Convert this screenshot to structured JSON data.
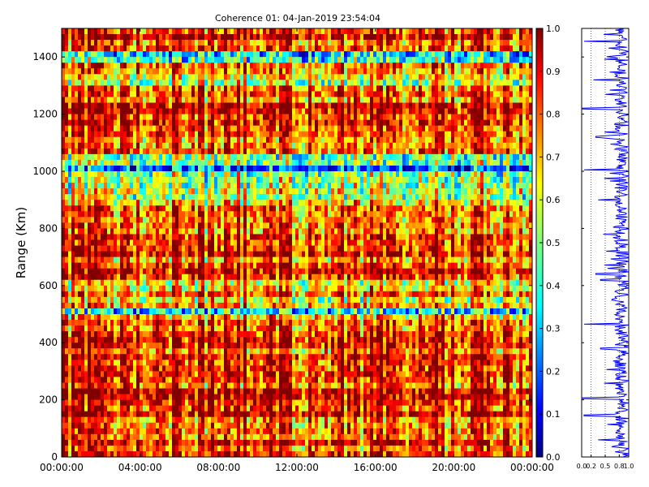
{
  "chart_data": [
    {
      "type": "heatmap",
      "title": "Coherence 01: 04-Jan-2019 23:54:04",
      "xlabel": "",
      "ylabel": "Range (Km)",
      "x_ticks": [
        "00:00:00",
        "04:00:00",
        "08:00:00",
        "12:00:00",
        "16:00:00",
        "20:00:00",
        "00:00:00"
      ],
      "x_range_hours": [
        0,
        24
      ],
      "y_ticks": [
        0,
        200,
        400,
        600,
        800,
        1000,
        1200,
        1400
      ],
      "ylim": [
        0,
        1500
      ],
      "colormap": "jet",
      "color_range": [
        0.0,
        1.0
      ],
      "colorbar_ticks": [
        "0.0",
        "0.1",
        "0.2",
        "0.3",
        "0.4",
        "0.5",
        "0.6",
        "0.7",
        "0.8",
        "0.9",
        "1.0"
      ],
      "grid": false,
      "bands": [
        {
          "range_km": [
            0,
            1500
          ],
          "coherence": 0.85
        },
        {
          "range_km": [
            440,
            620
          ],
          "coherence": 0.72
        },
        {
          "range_km": [
            880,
            1060
          ],
          "coherence": 0.6
        },
        {
          "range_km": [
            1300,
            1345
          ],
          "coherence": 0.55
        },
        {
          "range_km": [
            1390,
            1410
          ],
          "coherence": 0.45
        },
        {
          "range_km": [
            500,
            510
          ],
          "coherence": 0.4
        },
        {
          "range_km": [
            1000,
            1020
          ],
          "coherence": 0.35
        }
      ]
    },
    {
      "type": "line",
      "title": "",
      "xlabel": "",
      "ylabel": "",
      "x_ticks": [
        "0.0",
        "0.2",
        "0.5",
        "0.8",
        "1.0"
      ],
      "xlim": [
        0,
        1
      ],
      "ylim": [
        0,
        1500
      ],
      "orientation": "vertical",
      "series_color": "#0000ff",
      "typical_coherence": [
        0.7,
        1.0
      ],
      "dips": [
        {
          "range_km": 1455,
          "coherence": 0.05
        },
        {
          "range_km": 1320,
          "coherence": 0.25
        },
        {
          "range_km": 1220,
          "coherence": 0.02
        },
        {
          "range_km": 1120,
          "coherence": 0.3
        },
        {
          "range_km": 1005,
          "coherence": 0.05
        },
        {
          "range_km": 900,
          "coherence": 0.35
        },
        {
          "range_km": 640,
          "coherence": 0.3
        },
        {
          "range_km": 620,
          "coherence": 0.4
        },
        {
          "range_km": 465,
          "coherence": 0.05
        },
        {
          "range_km": 380,
          "coherence": 0.4
        },
        {
          "range_km": 205,
          "coherence": 0.02
        },
        {
          "range_km": 145,
          "coherence": 0.05
        },
        {
          "range_km": 60,
          "coherence": 0.35
        }
      ]
    }
  ]
}
